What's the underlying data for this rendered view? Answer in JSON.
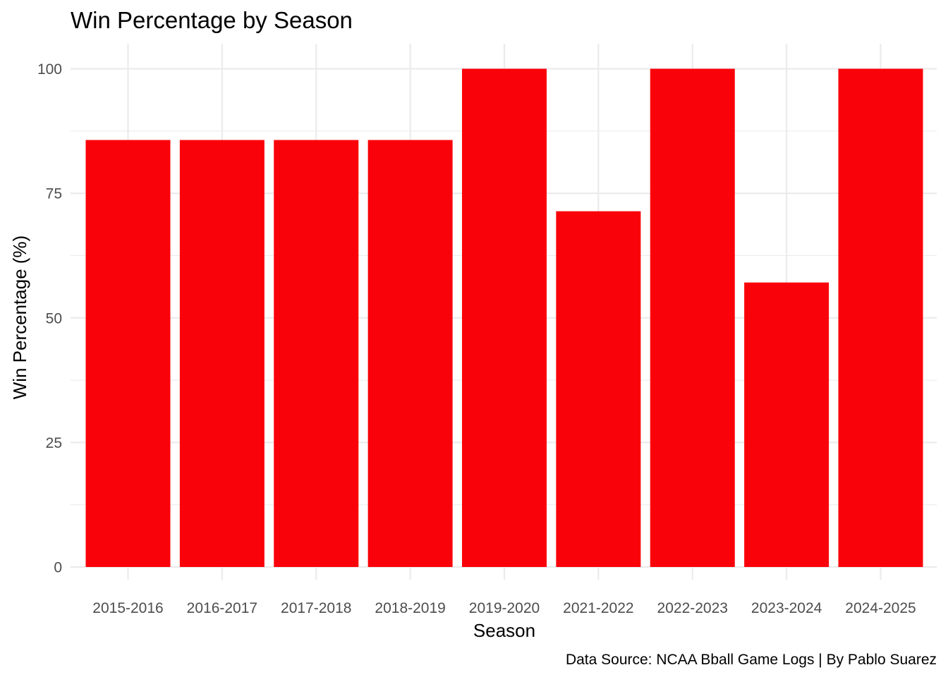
{
  "chart_data": {
    "type": "bar",
    "title": "Win Percentage by Season",
    "xlabel": "Season",
    "ylabel": "Win Percentage (%)",
    "caption": "Data Source: NCAA Bball Game Logs | By Pablo Suarez",
    "categories": [
      "2015-2016",
      "2016-2017",
      "2017-2018",
      "2018-2019",
      "2019-2020",
      "2021-2022",
      "2022-2023",
      "2023-2024",
      "2024-2025"
    ],
    "values": [
      85.7,
      85.7,
      85.7,
      85.7,
      100,
      71.4,
      100,
      57.1,
      100
    ],
    "ylim": [
      0,
      105
    ],
    "yticks": [
      0,
      25,
      50,
      75,
      100
    ],
    "grid": true,
    "legend": "none",
    "bar_color": "#FA0209"
  }
}
